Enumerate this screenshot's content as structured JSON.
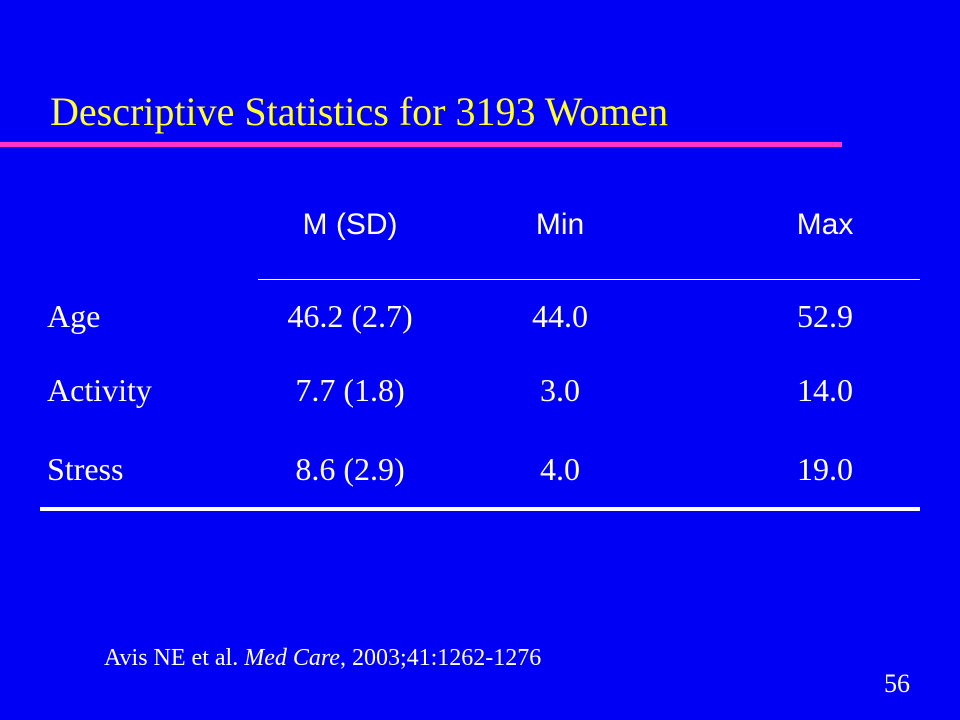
{
  "slide": {
    "title": "Descriptive Statistics for 3193 Women",
    "page_number": "56",
    "colors": {
      "background": "#0000f5",
      "title": "#ffff33",
      "title_rule": "#ff33cc",
      "text": "#ffffff"
    }
  },
  "table": {
    "headers": {
      "label": "",
      "msd": "M (SD)",
      "min": "Min",
      "max": "Max"
    },
    "rows": [
      {
        "label": "Age",
        "msd": "46.2 (2.7)",
        "min": "44.0",
        "max": "52.9"
      },
      {
        "label": "Activity",
        "msd": "7.7 (1.8)",
        "min": "3.0",
        "max": "14.0"
      },
      {
        "label": "Stress",
        "msd": "8.6 (2.9)",
        "min": "4.0",
        "max": "19.0"
      }
    ]
  },
  "citation": {
    "authors": "Avis NE et al. ",
    "journal": "Med Care",
    "details": ", 2003;41:1262-1276"
  }
}
